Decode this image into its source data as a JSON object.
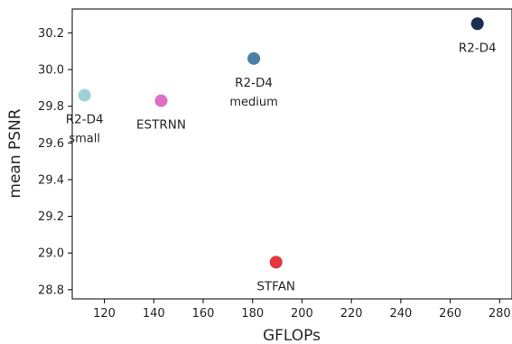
{
  "chart_data": {
    "type": "scatter",
    "title": "",
    "xlabel": "GFLOPs",
    "ylabel": "mean PSNR",
    "xlim": [
      107,
      285
    ],
    "ylim": [
      28.75,
      30.33
    ],
    "grid": false,
    "x_ticks": [
      120,
      140,
      160,
      180,
      200,
      220,
      240,
      260,
      280
    ],
    "y_ticks": [
      28.8,
      29.0,
      29.2,
      29.4,
      29.6,
      29.8,
      30.0,
      30.2
    ],
    "points": [
      {
        "label": "R2-D4",
        "sublabel": "small",
        "x": 112,
        "y": 29.86,
        "color": "#9fd2d7"
      },
      {
        "label": "ESTRNN",
        "sublabel": "",
        "x": 143,
        "y": 29.83,
        "color": "#dd70c4"
      },
      {
        "label": "R2-D4",
        "sublabel": "medium",
        "x": 180.5,
        "y": 30.06,
        "color": "#4a7fa6"
      },
      {
        "label": "STFAN",
        "sublabel": "",
        "x": 189.5,
        "y": 28.95,
        "color": "#e3363e"
      },
      {
        "label": "R2-D4",
        "sublabel": "",
        "x": 271,
        "y": 30.25,
        "color": "#1b2f52"
      }
    ]
  }
}
